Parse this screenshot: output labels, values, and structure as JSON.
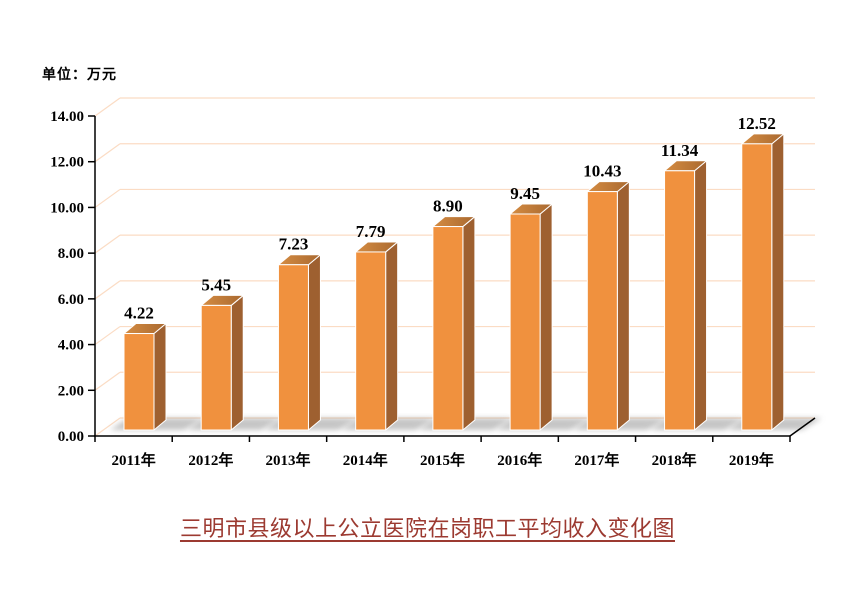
{
  "page": {
    "background": "#FFFFFF"
  },
  "chart_data": {
    "type": "bar",
    "variant": "3d-column",
    "title": "三明市县级以上公立医院在岗职工平均收入变化图",
    "unit_label": "单位：万元",
    "categories": [
      "2011年",
      "2012年",
      "2013年",
      "2014年",
      "2015年",
      "2016年",
      "2017年",
      "2018年",
      "2019年"
    ],
    "values": [
      4.22,
      5.45,
      7.23,
      7.79,
      8.9,
      9.45,
      10.43,
      11.34,
      12.52
    ],
    "value_labels": [
      "4.22",
      "5.45",
      "7.23",
      "7.79",
      "8.90",
      "9.45",
      "10.43",
      "11.34",
      "12.52"
    ],
    "xlabel": "",
    "ylabel": "",
    "ylim": [
      0,
      14
    ],
    "ytick_step": 2,
    "ytick_labels": [
      "0.00",
      "2.00",
      "4.00",
      "6.00",
      "8.00",
      "10.00",
      "12.00",
      "14.00"
    ],
    "grid": true,
    "legend": "none",
    "colors": {
      "bar_front": "#F0913E",
      "bar_side": "#9E6030",
      "bar_top_light": "#D58C42",
      "bar_top_dark": "#A96930",
      "gridline": "#FBDCC4",
      "axis": "#000000",
      "text": "#000000",
      "title": "#9C3A31",
      "shadow": "#8C8C8C"
    }
  }
}
